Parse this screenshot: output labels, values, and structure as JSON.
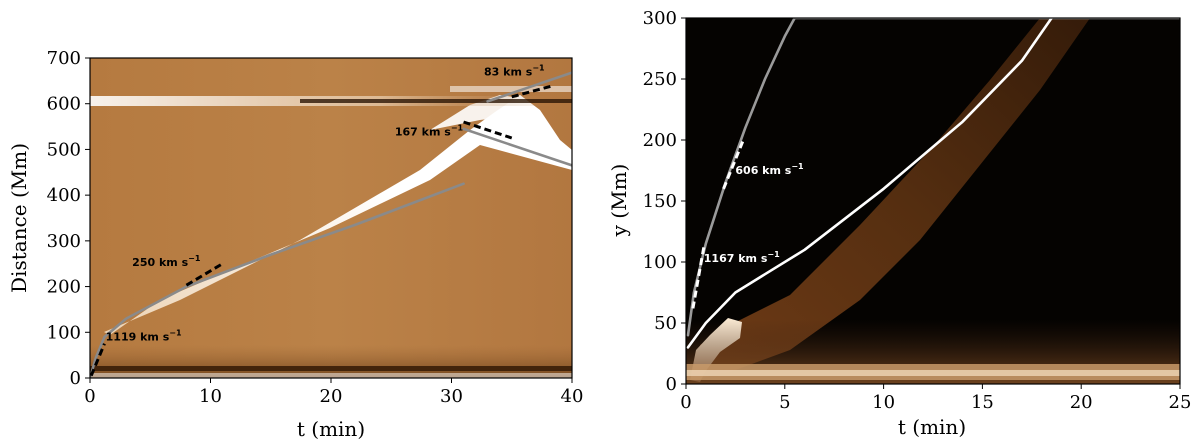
{
  "chart_data": [
    {
      "type": "heatmap",
      "title": "",
      "xlabel": "t (min)",
      "ylabel": "Distance (Mm)",
      "xlim": [
        0,
        40
      ],
      "ylim": [
        0,
        700
      ],
      "xticks": [
        0,
        10,
        20,
        30,
        40
      ],
      "yticks": [
        0,
        100,
        200,
        300,
        400,
        500,
        600,
        700
      ],
      "colormap": {
        "low": "#1a0f05",
        "mid": "#b97f43",
        "high": "#ffffff"
      },
      "fit_curves": [
        {
          "color": "#8a8a8a",
          "points": [
            [
              0,
              0
            ],
            [
              0.5,
              45
            ],
            [
              1.2,
              90
            ],
            [
              3,
              130
            ],
            [
              8,
              200
            ],
            [
              15,
              270
            ],
            [
              22,
              335
            ],
            [
              31,
              425
            ]
          ]
        },
        {
          "color": "#8a8a8a",
          "points": [
            [
              31,
              545
            ],
            [
              40,
              465
            ]
          ]
        },
        {
          "color": "#8a8a8a",
          "points": [
            [
              33,
              605
            ],
            [
              40,
              668
            ]
          ]
        }
      ],
      "velocity_fits": [
        {
          "label": "1119 km s$^{-1}$",
          "text": "1119 km s",
          "exp": "−1",
          "style": "dashed",
          "color": "#000000",
          "line": [
            [
              0.1,
              5
            ],
            [
              1.2,
              75
            ]
          ],
          "label_at": [
            1.3,
            82
          ]
        },
        {
          "label": "250 km s$^{-1}$",
          "text": "250 km s",
          "exp": "−1",
          "style": "dashed",
          "color": "#000000",
          "line": [
            [
              8,
              203
            ],
            [
              11,
              250
            ]
          ],
          "label_at": [
            3.5,
            245
          ]
        },
        {
          "label": "167 km s$^{-1}$",
          "text": "167 km s",
          "exp": "−1",
          "style": "dashed",
          "color": "#000000",
          "line": [
            [
              31,
              560
            ],
            [
              35,
              525
            ]
          ],
          "label_at": [
            25.3,
            530
          ]
        },
        {
          "label": "83 km s$^{-1}$",
          "text": "83 km s",
          "exp": "−1",
          "style": "dashed",
          "color": "#000000",
          "line": [
            [
              35,
              615
            ],
            [
              38.5,
              640
            ]
          ],
          "label_at": [
            32.7,
            662
          ]
        }
      ]
    },
    {
      "type": "heatmap",
      "title": "",
      "xlabel": "t (min)",
      "ylabel": "y (Mm)",
      "xlim": [
        0,
        25
      ],
      "ylim": [
        0,
        300
      ],
      "xticks": [
        0,
        5,
        10,
        15,
        20,
        25
      ],
      "yticks": [
        0,
        50,
        100,
        150,
        200,
        250,
        300
      ],
      "colormap": {
        "low": "#000000",
        "mid": "#8a5020",
        "high": "#ffffff"
      },
      "fit_curves": [
        {
          "color": "#9a9a9a",
          "points": [
            [
              0.1,
              40
            ],
            [
              0.4,
              75
            ],
            [
              1,
              115
            ],
            [
              2,
              165
            ],
            [
              3,
              210
            ],
            [
              4,
              250
            ],
            [
              5,
              285
            ],
            [
              5.5,
              300
            ],
            [
              25,
              300
            ]
          ]
        },
        {
          "color": "#ffffff",
          "points": [
            [
              0.1,
              30
            ],
            [
              1,
              50
            ],
            [
              2.5,
              75
            ],
            [
              4,
              90
            ],
            [
              6,
              110
            ],
            [
              10,
              160
            ],
            [
              14,
              215
            ],
            [
              17,
              265
            ],
            [
              18.5,
              300
            ]
          ]
        }
      ],
      "velocity_fits": [
        {
          "label": "1167 km s$^{-1}$",
          "text": "1167 km s",
          "exp": "−1",
          "style": "dashed",
          "color": "#ffffff",
          "line": [
            [
              0.35,
              62
            ],
            [
              0.9,
              112
            ]
          ],
          "label_at": [
            0.9,
            100
          ]
        },
        {
          "label": "606 km s$^{-1}$",
          "text": "606 km s",
          "exp": "−1",
          "style": "dashed",
          "color": "#ffffff",
          "line": [
            [
              1.9,
              160
            ],
            [
              2.9,
              200
            ]
          ],
          "label_at": [
            2.5,
            172
          ]
        }
      ]
    }
  ]
}
